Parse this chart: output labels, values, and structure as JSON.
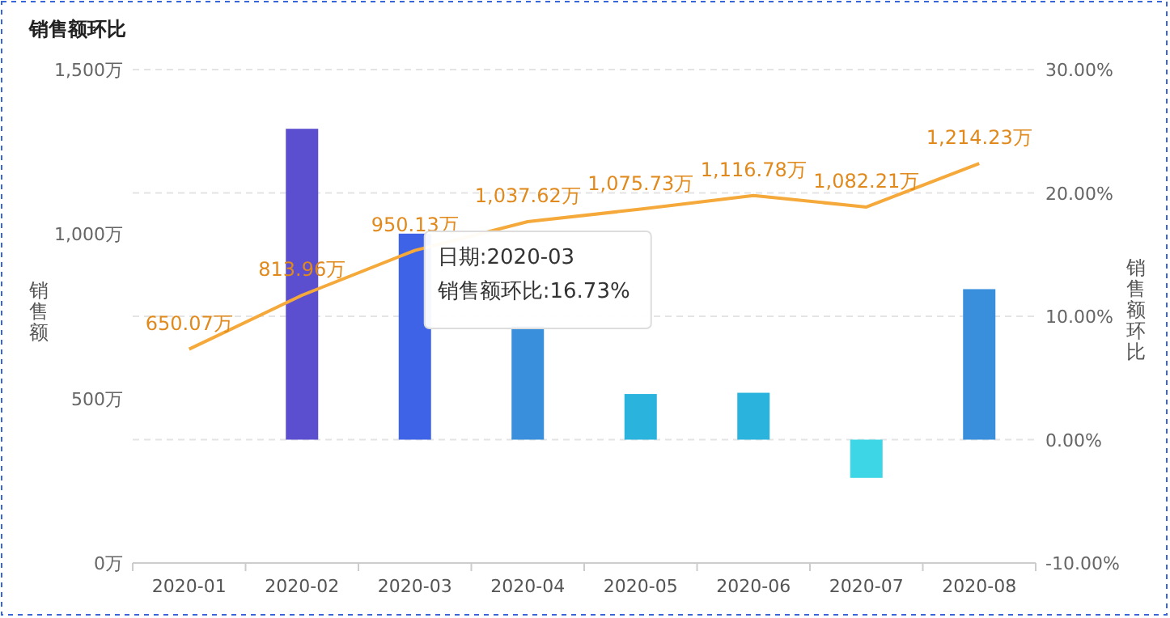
{
  "chart_data": {
    "type": "bar",
    "title": "销售额环比",
    "ylabel": "销售额",
    "y2label": "销售额环比",
    "categories": [
      "2020-01",
      "2020-02",
      "2020-03",
      "2020-04",
      "2020-05",
      "2020-06",
      "2020-07",
      "2020-08"
    ],
    "series": [
      {
        "axis": "y2",
        "colors": [
          null,
          "#5b4fd0",
          "#3f63e6",
          "#3a8fdc",
          "#2ab3dd",
          "#2ab3dd",
          "#3cd6e6",
          "#3a8fdc"
        ],
        "values": [
          null,
          25.2,
          16.7,
          9.2,
          3.7,
          3.8,
          -3.1,
          12.2
        ]
      },
      {
        "type": "line",
        "axis": "y",
        "color": "#f5a93a",
        "values": [
          650.07,
          813.96,
          950.13,
          1037.62,
          1075.73,
          1116.78,
          1082.21,
          1214.23
        ],
        "value_labels": [
          "650.07万",
          "813.96万",
          "950.13万",
          "1,037.62万",
          "1,075.73万",
          "1,116.78万",
          "1,082.21万",
          "1,214.23万"
        ]
      }
    ],
    "ylim": [
      0,
      1500
    ],
    "yticks": [
      {
        "value": 0,
        "label": "0万"
      },
      {
        "value": 500,
        "label": "500万"
      },
      {
        "value": 1000,
        "label": "1,000万"
      },
      {
        "value": 1500,
        "label": "1,500万"
      }
    ],
    "y2lim": [
      -10,
      30
    ],
    "y2ticks": [
      {
        "value": -10,
        "label": "-10.00%"
      },
      {
        "value": 0,
        "label": "0.00%"
      },
      {
        "value": 10,
        "label": "10.00%"
      },
      {
        "value": 20,
        "label": "20.00%"
      },
      {
        "value": 30,
        "label": "30.00%"
      }
    ],
    "grid": true,
    "marker": "none",
    "annotations": [
      "日期:2020-03",
      "销售额环比:16.73%"
    ]
  }
}
